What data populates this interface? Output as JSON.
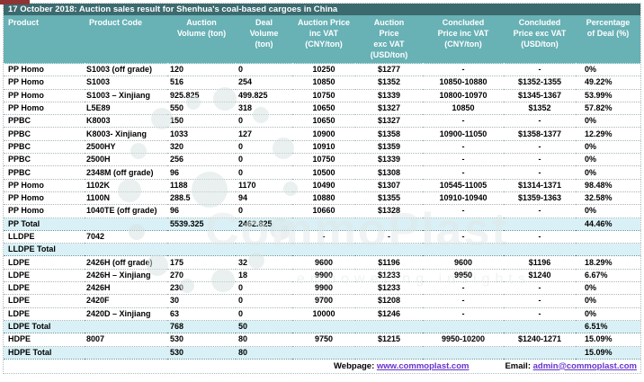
{
  "title": "17 October 2018: Auction sales result for Shenhua's coal-based cargoes in China",
  "colors": {
    "title_bar_bg": "#3b6a6f",
    "header_bg": "#68b1b5",
    "total_row_bg": "#d9f1f6",
    "link": "#6633cc",
    "accent_red_tab": "#8e3434"
  },
  "table": {
    "columns": [
      {
        "key": "product",
        "label": "Product"
      },
      {
        "key": "product_code",
        "label": "Product Code"
      },
      {
        "key": "auction_volume",
        "label": "Auction\nVolume (ton)"
      },
      {
        "key": "deal_volume",
        "label": "Deal\nVolume\n(ton)"
      },
      {
        "key": "auction_price_inc_vat",
        "label": "Auction Price\ninc VAT\n(CNY/ton)"
      },
      {
        "key": "auction_price_exc_vat",
        "label": "Auction\nPrice\nexc VAT\n(USD/ton)"
      },
      {
        "key": "concluded_price_inc_vat",
        "label": "Concluded\nPrice inc VAT\n(CNY/ton)"
      },
      {
        "key": "concluded_price_exc_vat",
        "label": "Concluded\nPrice exc VAT\n(USD/ton)"
      },
      {
        "key": "percentage_of_deal",
        "label": "Percentage\nof Deal (%)"
      }
    ],
    "rows": [
      {
        "type": "data",
        "cells": [
          "PP Homo",
          "S1003 (off grade)",
          "120",
          "0",
          "10250",
          "$1277",
          "-",
          "-",
          "0%"
        ]
      },
      {
        "type": "data",
        "cells": [
          "PP Homo",
          "S1003",
          "516",
          "254",
          "10850",
          "$1352",
          "10850-10880",
          "$1352-1355",
          "49.22%"
        ]
      },
      {
        "type": "data",
        "cells": [
          "PP Homo",
          "S1003 – Xinjiang",
          "925.825",
          "499.825",
          "10750",
          "$1339",
          "10800-10970",
          "$1345-1367",
          "53.99%"
        ]
      },
      {
        "type": "data",
        "cells": [
          "PP Homo",
          "L5E89",
          "550",
          "318",
          "10650",
          "$1327",
          "10850",
          "$1352",
          "57.82%"
        ]
      },
      {
        "type": "data",
        "cells": [
          "PPBC",
          "K8003",
          "150",
          "0",
          "10650",
          "$1327",
          "-",
          "-",
          "0%"
        ]
      },
      {
        "type": "data",
        "cells": [
          "PPBC",
          "K8003- Xinjiang",
          "1033",
          "127",
          "10900",
          "$1358",
          "10900-11050",
          "$1358-1377",
          "12.29%"
        ]
      },
      {
        "type": "data",
        "cells": [
          "PPBC",
          "2500HY",
          "320",
          "0",
          "10910",
          "$1359",
          "-",
          "-",
          "0%"
        ]
      },
      {
        "type": "data",
        "cells": [
          "PPBC",
          "2500H",
          "256",
          "0",
          "10750",
          "$1339",
          "-",
          "-",
          "0%"
        ]
      },
      {
        "type": "data",
        "cells": [
          "PPBC",
          "2348M (off grade)",
          "96",
          "0",
          "10500",
          "$1308",
          "-",
          "-",
          "0%"
        ]
      },
      {
        "type": "data",
        "cells": [
          "PP Homo",
          "1102K",
          "1188",
          "1170",
          "10490",
          "$1307",
          "10545-11005",
          "$1314-1371",
          "98.48%"
        ]
      },
      {
        "type": "data",
        "cells": [
          "PP Homo",
          "1100N",
          "288.5",
          "94",
          "10880",
          "$1355",
          "10910-10940",
          "$1359-1363",
          "32.58%"
        ]
      },
      {
        "type": "data",
        "cells": [
          "PP Homo",
          "1040TE (off grade)",
          "96",
          "0",
          "10660",
          "$1328",
          "-",
          "-",
          "0%"
        ]
      },
      {
        "type": "total",
        "cells": [
          "PP Total",
          "",
          "5539.325",
          "2462.825",
          "",
          "",
          "",
          "",
          "44.46%"
        ]
      },
      {
        "type": "data",
        "cells": [
          "LLDPE",
          "7042",
          "",
          "",
          "-",
          "-",
          "-",
          "-",
          ""
        ]
      },
      {
        "type": "total",
        "cells": [
          "LLDPE Total",
          "",
          "",
          "",
          "",
          "",
          "",
          "",
          ""
        ]
      },
      {
        "type": "data",
        "cells": [
          "LDPE",
          "2426H (off grade)",
          "175",
          "32",
          "9600",
          "$1196",
          "9600",
          "$1196",
          "18.29%"
        ]
      },
      {
        "type": "data",
        "cells": [
          "LDPE",
          "2426H – Xinjiang",
          "270",
          "18",
          "9900",
          "$1233",
          "9950",
          "$1240",
          "6.67%"
        ]
      },
      {
        "type": "data",
        "cells": [
          "LDPE",
          "2426H",
          "230",
          "0",
          "9900",
          "$1233",
          "-",
          "-",
          "0%"
        ]
      },
      {
        "type": "data",
        "cells": [
          "LDPE",
          "2420F",
          "30",
          "0",
          "9700",
          "$1208",
          "-",
          "-",
          "0%"
        ]
      },
      {
        "type": "data",
        "cells": [
          "LDPE",
          "2420D – Xinjiang",
          "63",
          "0",
          "10000",
          "$1246",
          "-",
          "-",
          "0%"
        ]
      },
      {
        "type": "total",
        "cells": [
          "LDPE Total",
          "",
          "768",
          "50",
          "",
          "",
          "",
          "",
          "6.51%"
        ]
      },
      {
        "type": "data",
        "cells": [
          "HDPE",
          "8007",
          "530",
          "80",
          "9750",
          "$1215",
          "9950-10200",
          "$1240-1271",
          "15.09%"
        ]
      },
      {
        "type": "total",
        "cells": [
          "HDPE Total",
          "",
          "530",
          "80",
          "",
          "",
          "",
          "",
          "15.09%"
        ]
      }
    ]
  },
  "footer": {
    "webpage_label": "Webpage:",
    "webpage_url": "www.commoplast.com",
    "email_label": "Email:",
    "email_address": "admin@commoplast.com"
  },
  "watermark": {
    "brand": "CommoPlast",
    "tagline": "empowering insights"
  }
}
